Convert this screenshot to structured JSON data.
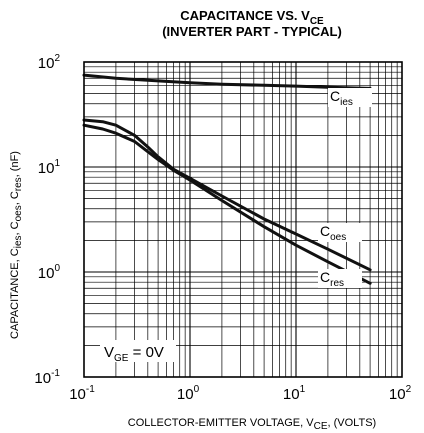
{
  "chart_data": {
    "type": "line",
    "title": {
      "line1_prefix": "CAPACITANCE VS. V",
      "line1_subscript": "CE",
      "line2": "(INVERTER PART - TYPICAL)"
    },
    "xscale": "log",
    "yscale": "log",
    "xlim": [
      0.1,
      100
    ],
    "ylim": [
      0.1,
      100
    ],
    "grid": true,
    "x_ticks": [
      {
        "base": "10",
        "exp": "-1"
      },
      {
        "base": "10",
        "exp": "0"
      },
      {
        "base": "10",
        "exp": "1"
      },
      {
        "base": "10",
        "exp": "2"
      }
    ],
    "y_ticks": [
      {
        "base": "10",
        "exp": "-1"
      },
      {
        "base": "10",
        "exp": "0"
      },
      {
        "base": "10",
        "exp": "1"
      },
      {
        "base": "10",
        "exp": "2"
      }
    ],
    "xlabel": {
      "prefix": "COLLECTOR-EMITTER VOLTAGE, V",
      "sub": "CE",
      "suffix": ", (VOLTS)"
    },
    "ylabel": {
      "p1": "CAPACITANCE, C",
      "s1": "ies",
      "p2": ", C",
      "s2": "oes",
      "p3": ", C",
      "s3": "res",
      "p4": ", (nF)"
    },
    "annotation": {
      "prefix": "V",
      "sub": "GE",
      "suffix": " = 0V"
    },
    "series": [
      {
        "name": "C",
        "sub": "ies",
        "color": "#111111",
        "x": [
          0.1,
          0.2,
          0.5,
          1,
          2,
          5,
          10,
          20,
          50
        ],
        "y": [
          75,
          70,
          66,
          63.5,
          61.5,
          60,
          59,
          57.5,
          56
        ]
      },
      {
        "name": "C",
        "sub": "oes",
        "color": "#111111",
        "x": [
          0.1,
          0.15,
          0.2,
          0.3,
          0.4,
          0.5,
          0.7,
          1,
          2,
          5,
          10,
          20,
          50
        ],
        "y": [
          28,
          27,
          25,
          20,
          15.5,
          12.5,
          9.5,
          7.8,
          5.3,
          3.2,
          2.3,
          1.65,
          1.05
        ]
      },
      {
        "name": "C",
        "sub": "res",
        "color": "#111111",
        "x": [
          0.1,
          0.15,
          0.2,
          0.3,
          0.4,
          0.5,
          0.7,
          1,
          2,
          5,
          10,
          20,
          50
        ],
        "y": [
          25,
          23,
          21,
          17.5,
          14,
          11.8,
          9.3,
          7.5,
          4.8,
          2.7,
          1.8,
          1.25,
          0.78
        ]
      }
    ]
  }
}
